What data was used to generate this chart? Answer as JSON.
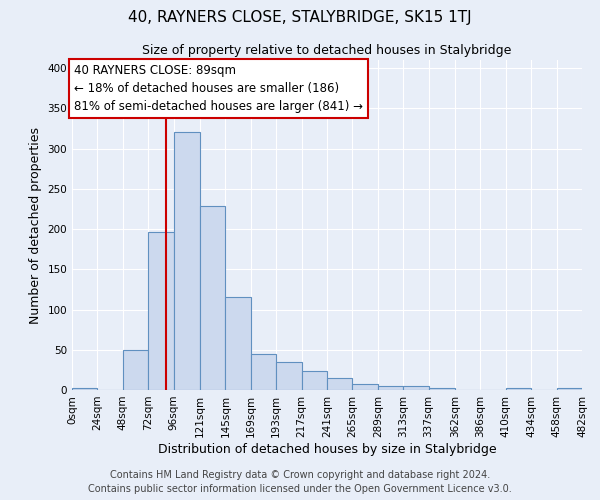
{
  "title": "40, RAYNERS CLOSE, STALYBRIDGE, SK15 1TJ",
  "subtitle": "Size of property relative to detached houses in Stalybridge",
  "xlabel": "Distribution of detached houses by size in Stalybridge",
  "ylabel": "Number of detached properties",
  "bin_edges": [
    0,
    24,
    48,
    72,
    96,
    121,
    145,
    169,
    193,
    217,
    241,
    265,
    289,
    313,
    337,
    362,
    386,
    410,
    434,
    458,
    482
  ],
  "bin_labels": [
    "0sqm",
    "24sqm",
    "48sqm",
    "72sqm",
    "96sqm",
    "121sqm",
    "145sqm",
    "169sqm",
    "193sqm",
    "217sqm",
    "241sqm",
    "265sqm",
    "289sqm",
    "313sqm",
    "337sqm",
    "362sqm",
    "386sqm",
    "410sqm",
    "434sqm",
    "458sqm",
    "482sqm"
  ],
  "counts": [
    2,
    0,
    50,
    196,
    320,
    228,
    115,
    45,
    35,
    24,
    15,
    8,
    5,
    5,
    3,
    0,
    0,
    3,
    0,
    3
  ],
  "bar_color": "#ccd9ee",
  "bar_edge_color": "#6090c0",
  "property_line_x": 89,
  "property_line_color": "#cc0000",
  "annotation_line1": "40 RAYNERS CLOSE: 89sqm",
  "annotation_line2": "← 18% of detached houses are smaller (186)",
  "annotation_line3": "81% of semi-detached houses are larger (841) →",
  "annotation_box_edge_color": "#cc0000",
  "annotation_box_face_color": "#ffffff",
  "ylim": [
    0,
    410
  ],
  "yticks": [
    0,
    50,
    100,
    150,
    200,
    250,
    300,
    350,
    400
  ],
  "footer1": "Contains HM Land Registry data © Crown copyright and database right 2024.",
  "footer2": "Contains public sector information licensed under the Open Government Licence v3.0.",
  "background_color": "#e8eef8",
  "axes_background_color": "#e8eef8",
  "grid_color": "#ffffff",
  "title_fontsize": 11,
  "subtitle_fontsize": 9,
  "annotation_fontsize": 8.5,
  "footer_fontsize": 7,
  "tick_fontsize": 7.5
}
